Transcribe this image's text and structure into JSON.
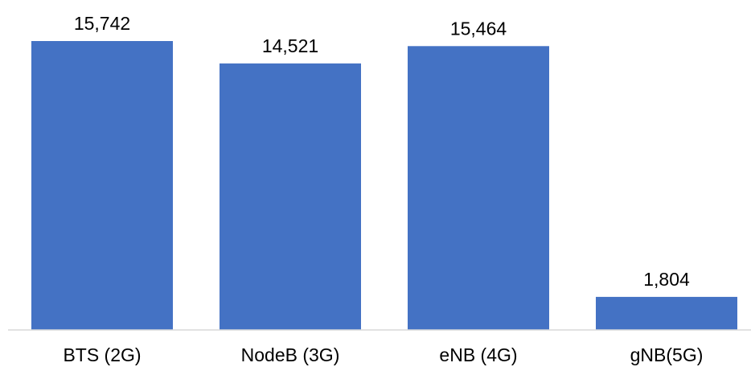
{
  "chart_data": {
    "type": "bar",
    "title": "",
    "xlabel": "",
    "ylabel": "",
    "categories": [
      "BTS (2G)",
      "NodeB (3G)",
      "eNB (4G)",
      "gNB(5G)"
    ],
    "values": [
      15742,
      14521,
      15464,
      1804
    ],
    "data_labels": [
      "15,742",
      "14,521",
      "15,464",
      "1,804"
    ],
    "ylim": [
      0,
      17100
    ],
    "grid": false,
    "legend": "none",
    "colors": {
      "bar": "#4472C4",
      "axis": "#D9D9D9",
      "text": "#000000"
    }
  }
}
